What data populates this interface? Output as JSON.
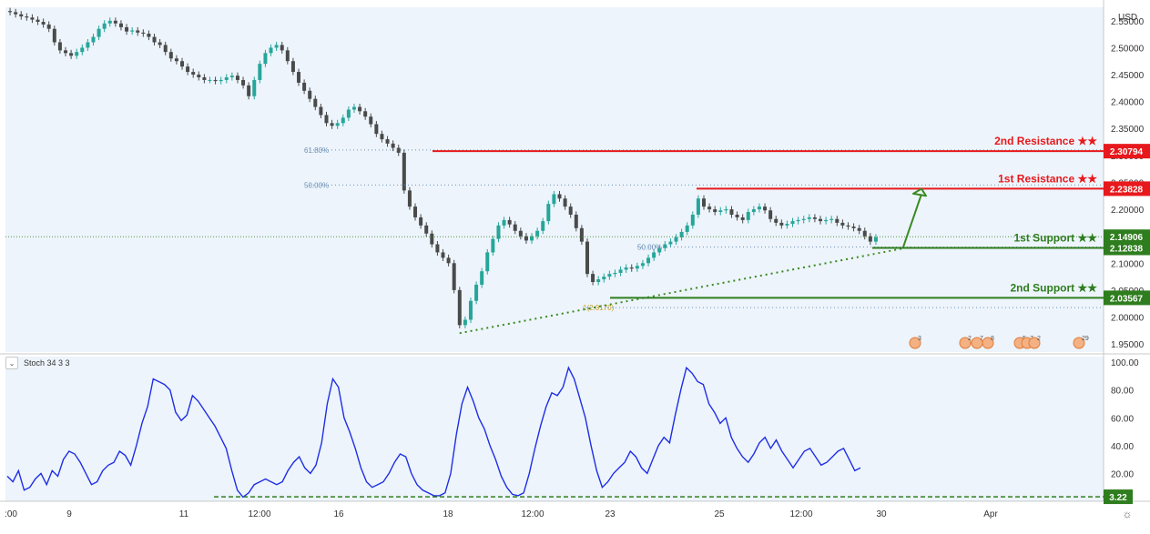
{
  "currency": "USD",
  "price_axis": {
    "ticks": [
      "2.55000",
      "2.50000",
      "2.45000",
      "2.40000",
      "2.35000",
      "2.30000",
      "2.25000",
      "2.20000",
      "2.15000",
      "2.10000",
      "2.05000",
      "2.00000",
      "1.95000"
    ],
    "ylim": [
      1.935,
      2.575
    ]
  },
  "stoch_axis": {
    "ticks": [
      "100.00",
      "80.00",
      "60.00",
      "40.00",
      "20.00"
    ],
    "ylim": [
      0,
      104
    ]
  },
  "time_axis": {
    "labels": [
      ":00",
      "9",
      "11",
      "12:00",
      "16",
      "18",
      "12:00",
      "23",
      "25",
      "12:00",
      "30",
      "Apr"
    ]
  },
  "stoch_legend": "Stoch 34 3 3",
  "levels": [
    {
      "key": "r2",
      "label": "2nd Resistance ★★",
      "price_label": "2.30794",
      "value": 2.30794,
      "color": "#e8191c"
    },
    {
      "key": "r1",
      "label": "1st Resistance ★★",
      "price_label": "2.23828",
      "value": 2.23828,
      "color": "#e8191c"
    },
    {
      "key": "s1",
      "label": "1st Support ★★",
      "price_label": "2.12838",
      "value": 2.12838,
      "color": "#2e7d1e"
    },
    {
      "key": "s2",
      "label": "2nd Support ★★",
      "price_label": "2.03567",
      "value": 2.03567,
      "color": "#2e7d1e"
    }
  ],
  "current_price": {
    "label": "2.14906",
    "value": 2.14906,
    "color": "#2e7d1e"
  },
  "fib_labels": [
    {
      "label": "61.80%",
      "value": 2.31
    },
    {
      "label": "50.00%",
      "value": 2.245
    },
    {
      "label": "50.00%",
      "value": 2.13
    },
    {
      "label": "1(2.0170)",
      "value": 2.0175
    }
  ],
  "stoch_level": {
    "label": "3.22",
    "value": 3.22,
    "color": "#2e7d1e"
  },
  "event_markers": [
    "3",
    "2",
    "7",
    "8",
    "5",
    "7",
    "2",
    "29"
  ],
  "colors": {
    "up": "#26a69a",
    "down": "#4a4a4a",
    "stoch": "#1f2ee6",
    "fib": "#6b8fb5",
    "trend": "#3b8a22"
  },
  "chart_data": {
    "type": "candlestick",
    "title": "",
    "x_labels": [
      ":00",
      "9",
      "11",
      "12:00",
      "16",
      "18",
      "12:00",
      "23",
      "25",
      "12:00",
      "30",
      "Apr"
    ],
    "close": [
      2.566,
      2.562,
      2.558,
      2.556,
      2.552,
      2.548,
      2.543,
      2.535,
      2.51,
      2.495,
      2.49,
      2.485,
      2.492,
      2.5,
      2.51,
      2.52,
      2.535,
      2.545,
      2.55,
      2.545,
      2.538,
      2.53,
      2.532,
      2.528,
      2.526,
      2.52,
      2.51,
      2.505,
      2.492,
      2.48,
      2.475,
      2.465,
      2.455,
      2.45,
      2.445,
      2.44,
      2.44,
      2.438,
      2.44,
      2.445,
      2.448,
      2.44,
      2.43,
      2.41,
      2.44,
      2.47,
      2.49,
      2.5,
      2.505,
      2.495,
      2.475,
      2.455,
      2.435,
      2.42,
      2.405,
      2.39,
      2.375,
      2.36,
      2.355,
      2.36,
      2.37,
      2.385,
      2.39,
      2.382,
      2.372,
      2.358,
      2.34,
      2.33,
      2.322,
      2.314,
      2.305,
      2.235,
      2.205,
      2.185,
      2.17,
      2.155,
      2.135,
      2.12,
      2.11,
      2.1,
      2.05,
      1.985,
      1.995,
      2.03,
      2.06,
      2.085,
      2.12,
      2.145,
      2.17,
      2.18,
      2.172,
      2.16,
      2.15,
      2.142,
      2.15,
      2.16,
      2.178,
      2.21,
      2.228,
      2.22,
      2.205,
      2.19,
      2.165,
      2.14,
      2.08,
      2.065,
      2.07,
      2.075,
      2.08,
      2.082,
      2.088,
      2.092,
      2.09,
      2.095,
      2.1,
      2.11,
      2.12,
      2.128,
      2.135,
      2.14,
      2.148,
      2.158,
      2.17,
      2.19,
      2.22,
      2.205,
      2.2,
      2.195,
      2.198,
      2.2,
      2.19,
      2.185,
      2.18,
      2.195,
      2.2,
      2.205,
      2.198,
      2.182,
      2.175,
      2.17,
      2.173,
      2.178,
      2.18,
      2.182,
      2.185,
      2.182,
      2.178,
      2.18,
      2.182,
      2.175,
      2.17,
      2.168,
      2.165,
      2.16,
      2.15,
      2.14,
      2.148
    ],
    "price_levels": [
      {
        "name": "2nd Resistance",
        "value": 2.30794
      },
      {
        "name": "1st Resistance",
        "value": 2.23828
      },
      {
        "name": "1st Support",
        "value": 2.12838
      },
      {
        "name": "2nd Support",
        "value": 2.03567
      }
    ],
    "last_price": 2.14906,
    "ylim": [
      1.935,
      2.575
    ],
    "stochastic": {
      "name": "Stoch 34 3 3",
      "values": [
        18,
        14,
        22,
        8,
        10,
        16,
        20,
        12,
        22,
        18,
        30,
        36,
        34,
        28,
        20,
        12,
        14,
        22,
        26,
        28,
        36,
        33,
        26,
        40,
        56,
        68,
        88,
        86,
        84,
        80,
        64,
        58,
        62,
        76,
        72,
        66,
        60,
        54,
        46,
        38,
        22,
        8,
        3,
        6,
        12,
        14,
        16,
        14,
        12,
        14,
        22,
        28,
        32,
        24,
        20,
        26,
        42,
        70,
        88,
        82,
        60,
        50,
        38,
        24,
        14,
        10,
        12,
        14,
        20,
        28,
        34,
        32,
        20,
        12,
        8,
        6,
        4,
        4,
        6,
        20,
        48,
        70,
        82,
        72,
        60,
        52,
        40,
        30,
        18,
        10,
        5,
        4,
        6,
        20,
        38,
        54,
        68,
        78,
        76,
        82,
        96,
        88,
        74,
        60,
        40,
        22,
        10,
        14,
        20,
        24,
        28,
        36,
        32,
        24,
        20,
        30,
        40,
        46,
        42,
        62,
        80,
        96,
        92,
        86,
        84,
        70,
        64,
        56,
        60,
        46,
        38,
        32,
        28,
        34,
        42,
        46,
        38,
        44,
        36,
        30,
        24,
        30,
        36,
        38,
        32,
        26,
        28,
        32,
        36,
        38,
        30,
        22,
        24
      ],
      "level_line": 3.22,
      "ylim": [
        0,
        104
      ]
    }
  }
}
